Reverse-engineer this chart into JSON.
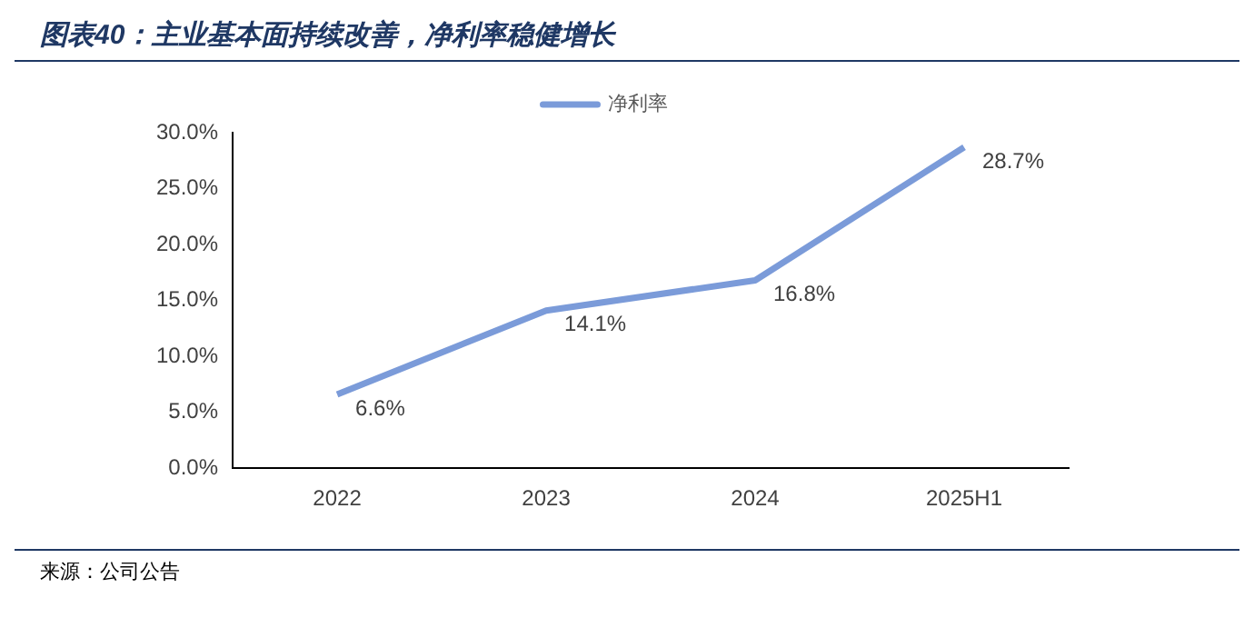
{
  "chart_data": {
    "type": "line",
    "title": "图表40：主业基本面持续改善，净利率稳健增长",
    "categories": [
      "2022",
      "2023",
      "2024",
      "2025H1"
    ],
    "series": [
      {
        "name": "净利率",
        "color": "#7b9bd9",
        "values": [
          6.6,
          14.1,
          16.8,
          28.7
        ],
        "value_labels": [
          "6.6%",
          "14.1%",
          "16.8%",
          "28.7%"
        ]
      }
    ],
    "ylim": [
      0,
      30
    ],
    "yticks": [
      {
        "value": 0,
        "label": "0.0%"
      },
      {
        "value": 5,
        "label": "5.0%"
      },
      {
        "value": 10,
        "label": "10.0%"
      },
      {
        "value": 15,
        "label": "15.0%"
      },
      {
        "value": 20,
        "label": "20.0%"
      },
      {
        "value": 25,
        "label": "25.0%"
      },
      {
        "value": 30,
        "label": "30.0%"
      }
    ],
    "legend": "top",
    "marker": "none",
    "line_style": "solid",
    "grid": false,
    "annotations": [
      "来源：公司公告"
    ]
  }
}
